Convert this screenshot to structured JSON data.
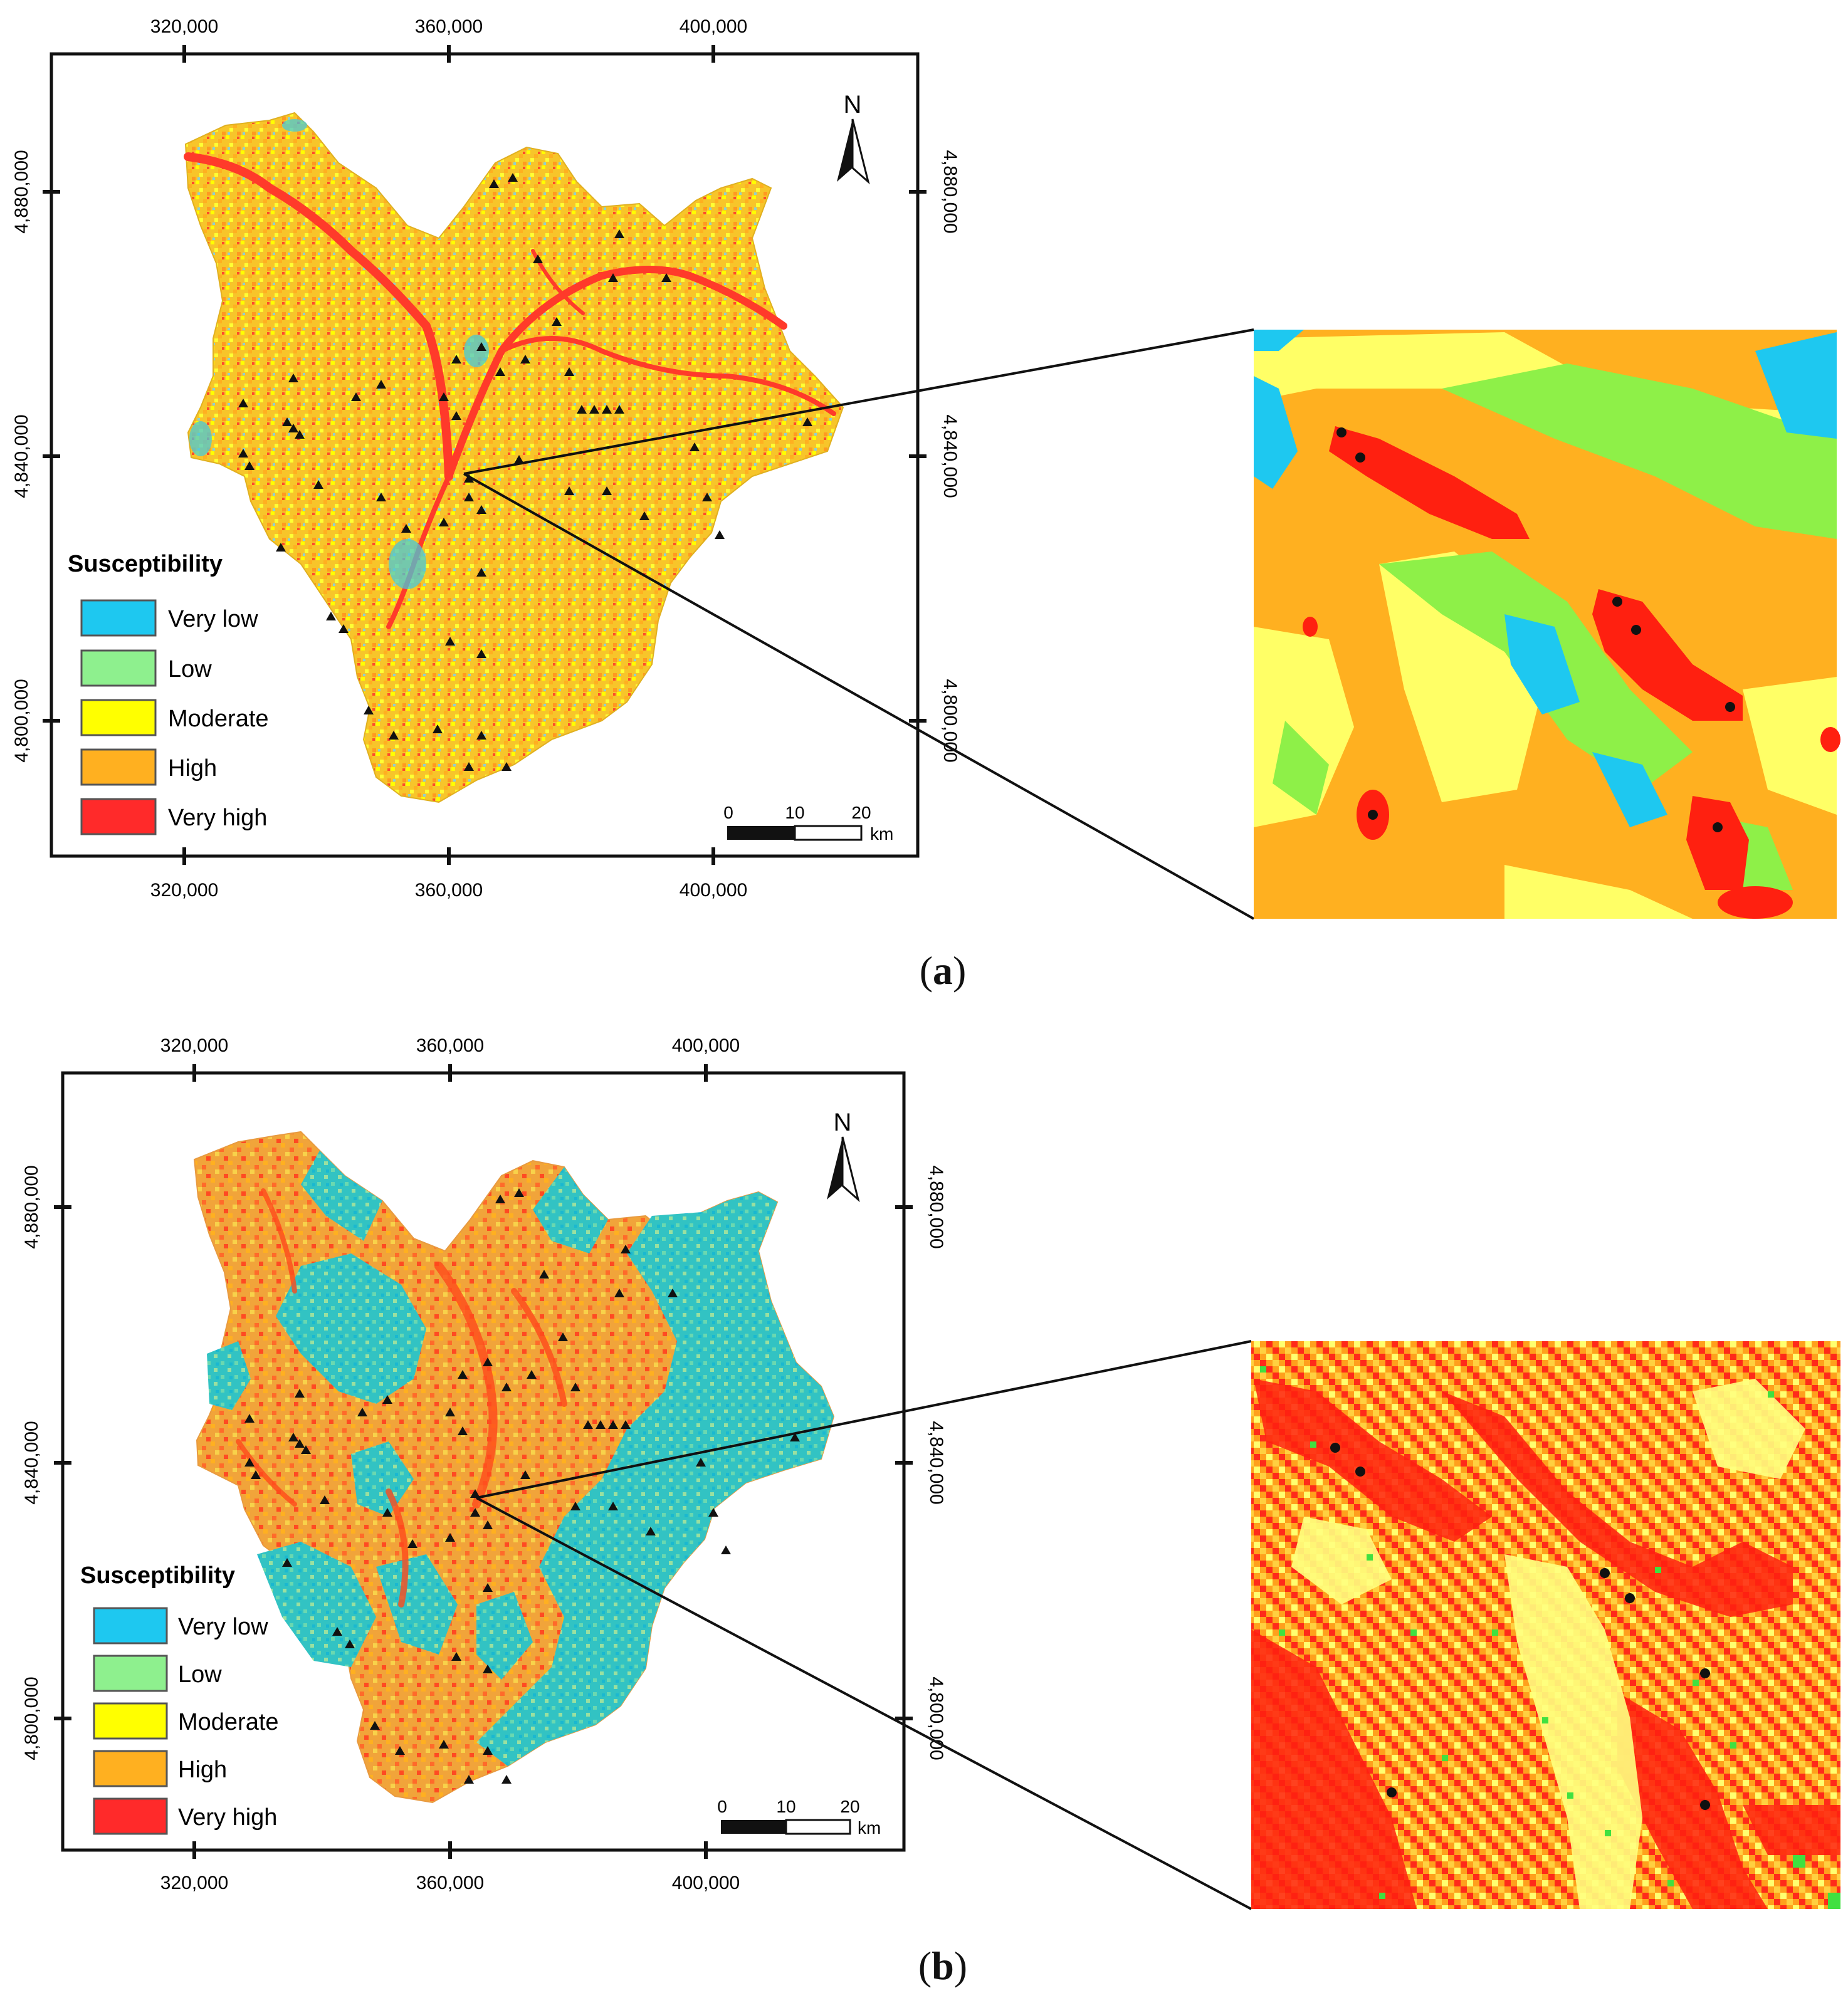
{
  "panels": [
    {
      "id": "a",
      "caption_letter": "a",
      "x_ticks": [
        "320,000",
        "360,000",
        "400,000"
      ],
      "y_ticks": [
        "4,880,000",
        "4,840,000",
        "4,800,000"
      ],
      "north_label": "N",
      "legend": {
        "title": "Susceptibility",
        "classes": [
          {
            "label": "Very low",
            "color": "#1ec8f0"
          },
          {
            "label": "Low",
            "color": "#8ef08e"
          },
          {
            "label": "Moderate",
            "color": "#ffff00"
          },
          {
            "label": "High",
            "color": "#ffb020"
          },
          {
            "label": "Very high",
            "color": "#ff2a2a"
          }
        ]
      },
      "scale_bar": {
        "ticks": [
          "0",
          "10",
          "20"
        ],
        "unit": "km"
      },
      "map_palette": {
        "base": "#f5d020",
        "dominant": [
          "#ffb020",
          "#ffff00",
          "#ff2a2a",
          "#1ec8f0"
        ]
      }
    },
    {
      "id": "b",
      "caption_letter": "b",
      "x_ticks": [
        "320,000",
        "360,000",
        "400,000"
      ],
      "y_ticks": [
        "4,880,000",
        "4,840,000",
        "4,800,000"
      ],
      "north_label": "N",
      "legend": {
        "title": "Susceptibility",
        "classes": [
          {
            "label": "Very low",
            "color": "#1ec8f0"
          },
          {
            "label": "Low",
            "color": "#8ef08e"
          },
          {
            "label": "Moderate",
            "color": "#ffff00"
          },
          {
            "label": "High",
            "color": "#ffb020"
          },
          {
            "label": "Very high",
            "color": "#ff2a2a"
          }
        ]
      },
      "scale_bar": {
        "ticks": [
          "0",
          "10",
          "20"
        ],
        "unit": "km"
      },
      "map_palette": {
        "base": "#f3a23a",
        "dominant": [
          "#ffb020",
          "#2ec4c0",
          "#ff5030",
          "#9ad890"
        ]
      }
    }
  ]
}
